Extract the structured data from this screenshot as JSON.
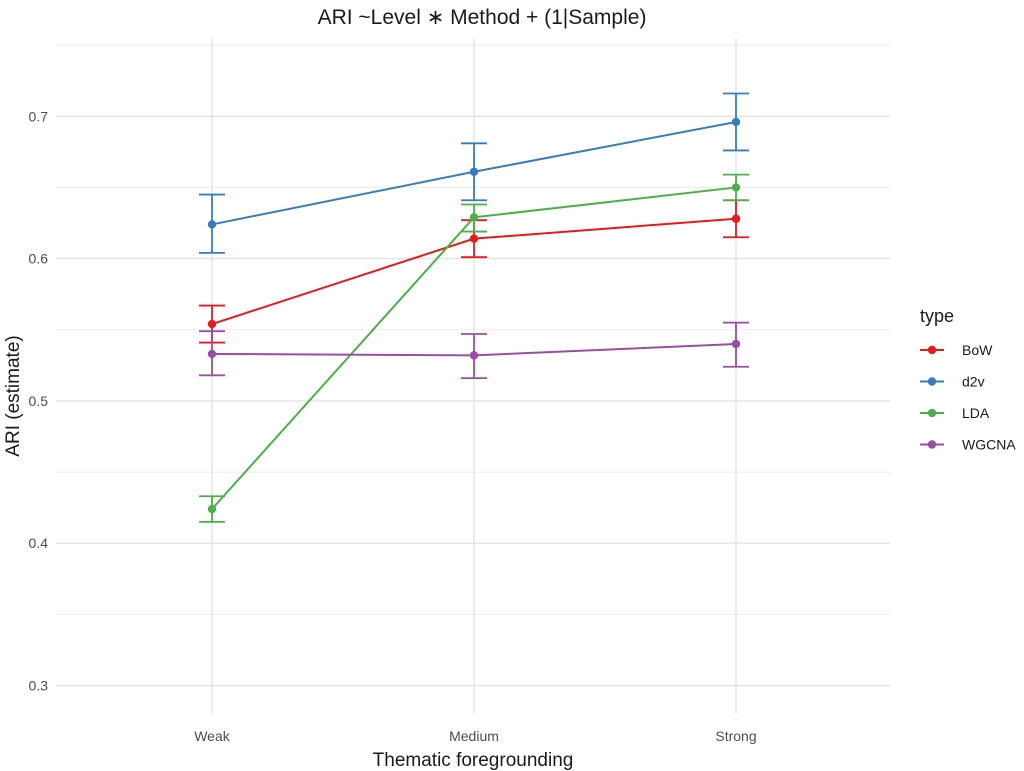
{
  "chart_data": {
    "type": "line",
    "title": "ARI ~Level ∗ Method + (1|Sample)",
    "xlabel": "Thematic foregrounding",
    "ylabel": "ARI (estimate)",
    "categories": [
      "Weak",
      "Medium",
      "Strong"
    ],
    "ylim": [
      0.28,
      0.755
    ],
    "yticks": [
      0.3,
      0.4,
      0.5,
      0.6,
      0.7
    ],
    "ytick_labels": [
      "0.3",
      "0.4",
      "0.5",
      "0.6",
      "0.7"
    ],
    "grid": true,
    "legend": {
      "title": "type",
      "position": "right"
    },
    "series": [
      {
        "name": "BoW",
        "color": "#E41A1C",
        "values": [
          0.554,
          0.614,
          0.628
        ],
        "lower": [
          0.541,
          0.601,
          0.615
        ],
        "upper": [
          0.567,
          0.627,
          0.641
        ]
      },
      {
        "name": "d2v",
        "color": "#377EB8",
        "values": [
          0.624,
          0.661,
          0.696
        ],
        "lower": [
          0.604,
          0.641,
          0.676
        ],
        "upper": [
          0.645,
          0.681,
          0.716
        ]
      },
      {
        "name": "LDA",
        "color": "#4DAF4A",
        "values": [
          0.424,
          0.629,
          0.65
        ],
        "lower": [
          0.415,
          0.619,
          0.641
        ],
        "upper": [
          0.433,
          0.638,
          0.659
        ]
      },
      {
        "name": "WGCNA",
        "color": "#984EA3",
        "values": [
          0.533,
          0.532,
          0.54
        ],
        "lower": [
          0.518,
          0.516,
          0.524
        ],
        "upper": [
          0.549,
          0.547,
          0.555
        ]
      }
    ]
  }
}
